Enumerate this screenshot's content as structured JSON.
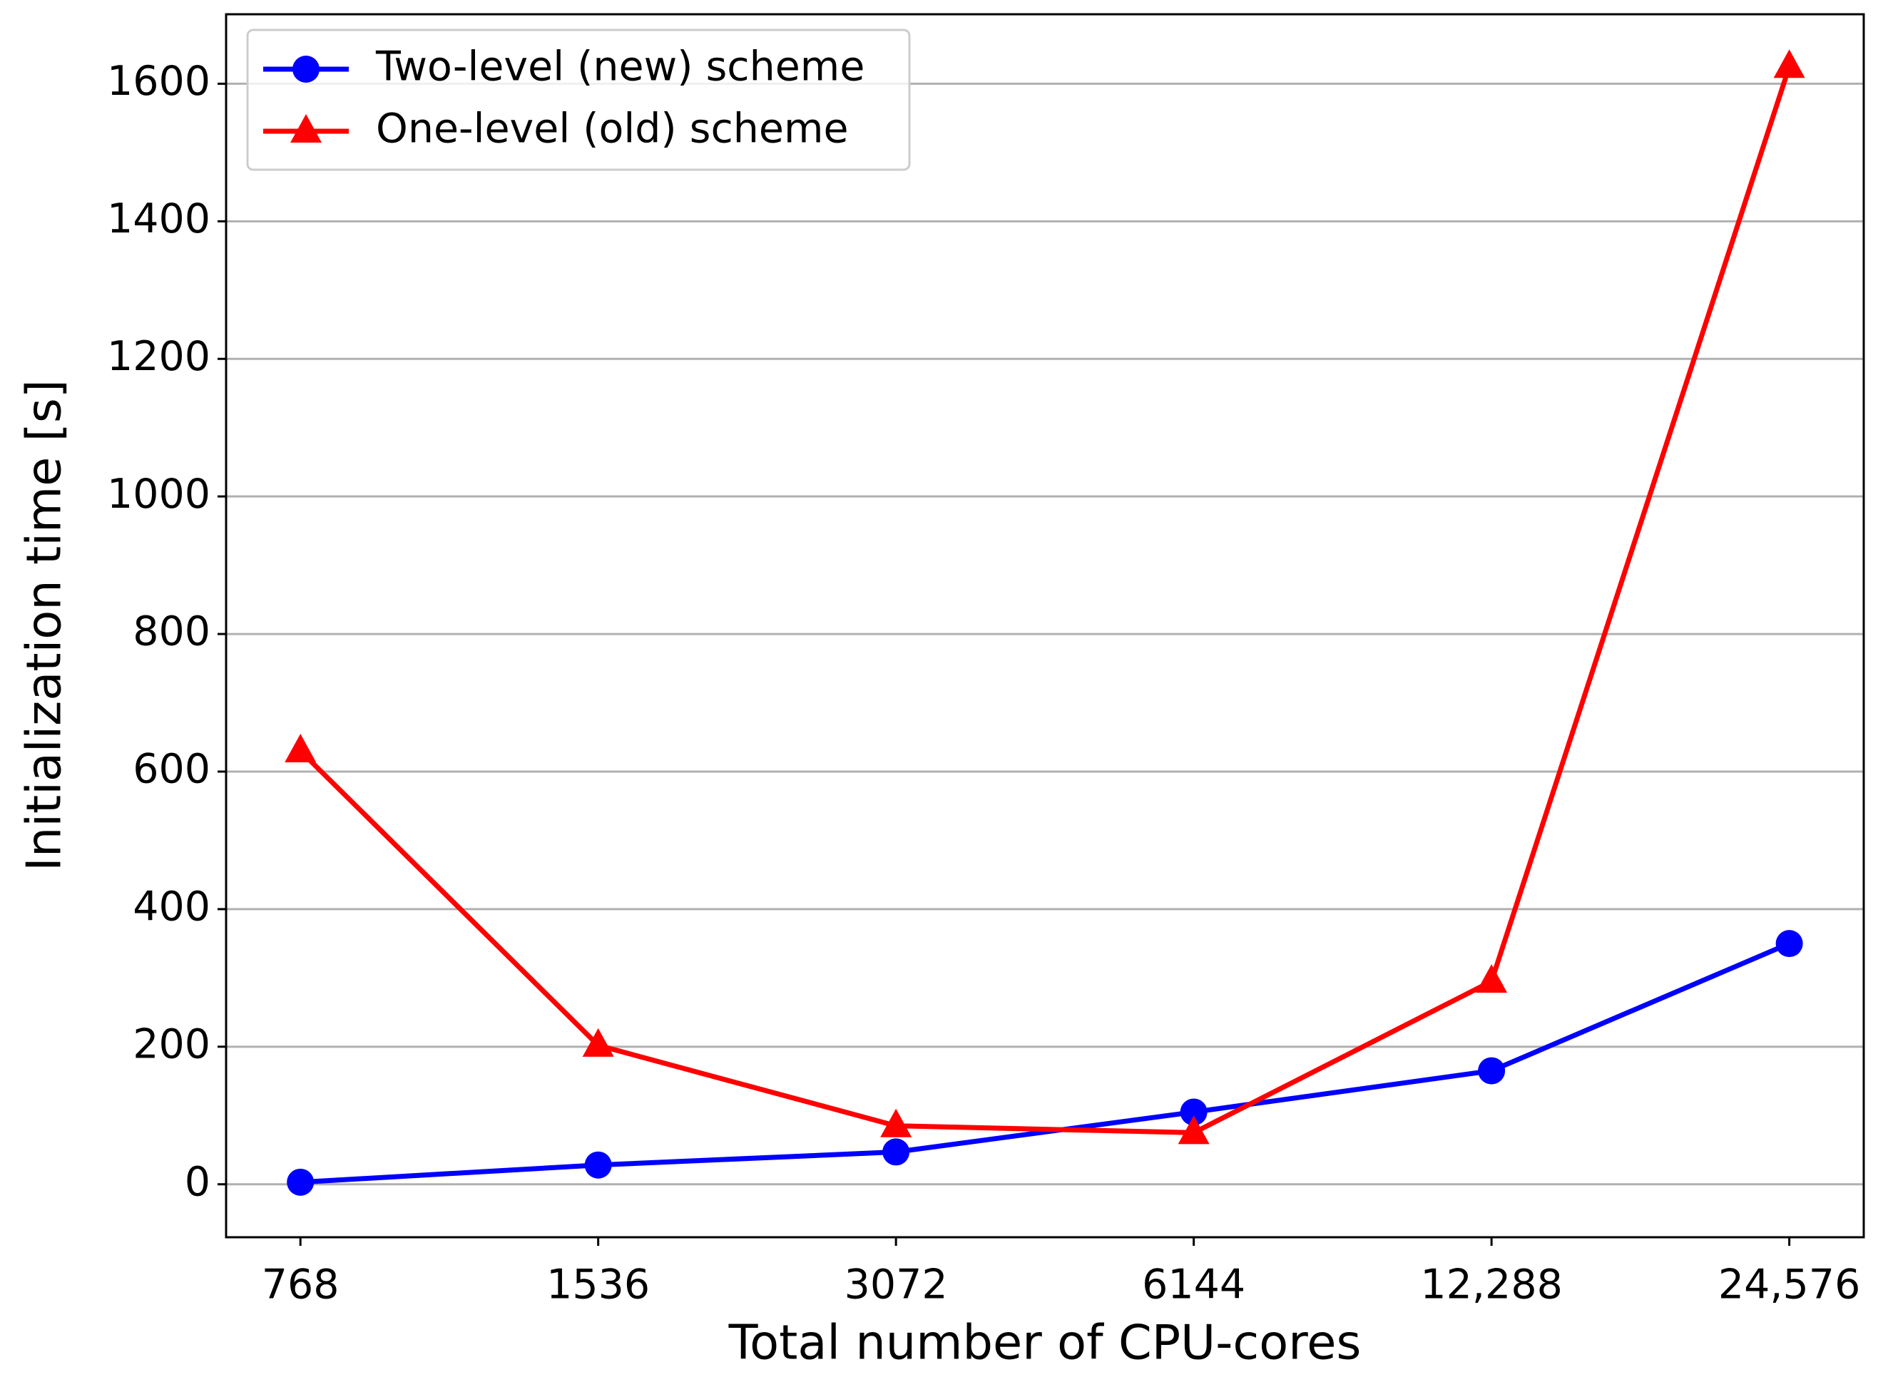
{
  "chart_data": {
    "type": "line",
    "x_label": "Total number of CPU-cores",
    "y_label": "Initialization time [s]",
    "x": [
      768,
      1536,
      3072,
      6144,
      12288,
      24576
    ],
    "xscale": "log",
    "xlim": [
      646,
      29226
    ],
    "xticks": [
      768,
      1536,
      3072,
      6144,
      {
        "value": 12288,
        "label": "12,288"
      },
      {
        "value": 24576,
        "label": "24,576"
      }
    ],
    "ylim": [
      -77,
      1701
    ],
    "yticks": [
      0,
      200,
      400,
      600,
      800,
      1000,
      1200,
      1400,
      1600
    ],
    "grid": "y",
    "legend": "upper left",
    "series": [
      {
        "name": "Two-level (new) scheme",
        "color": "#0000ff",
        "marker": "circle",
        "values": [
          3,
          28,
          47,
          105,
          165,
          350
        ]
      },
      {
        "name": "One-level (old) scheme",
        "color": "#ff0000",
        "marker": "triangle",
        "values": [
          630,
          202,
          85,
          75,
          295,
          1625
        ]
      }
    ]
  }
}
